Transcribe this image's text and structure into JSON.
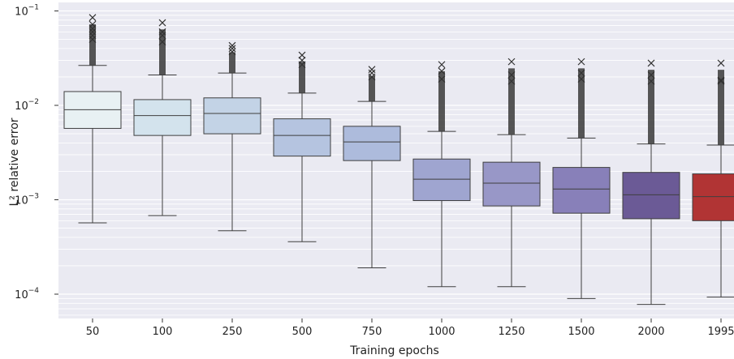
{
  "chart_data": {
    "type": "box",
    "xlabel": "Training epochs",
    "ylabel": "L² relative error",
    "yscale": "log",
    "ylim": [
      5e-05,
      0.1
    ],
    "y_ticks": [
      {
        "value": 0.1,
        "base": "10",
        "exp": "−1"
      },
      {
        "value": 0.01,
        "base": "10",
        "exp": "−2"
      },
      {
        "value": 0.001,
        "base": "10",
        "exp": "−3"
      },
      {
        "value": 0.0001,
        "base": "10",
        "exp": "−4"
      }
    ],
    "grid": true,
    "background_color": "#eaeaf2",
    "categories": [
      "50",
      "100",
      "250",
      "500",
      "750",
      "1000",
      "1250",
      "1500",
      "2000",
      "1995"
    ],
    "boxes": [
      {
        "label": "50",
        "color": "#e8f1f3",
        "whisker_low": 0.00057,
        "q1": 0.0057,
        "median": 0.009,
        "q3": 0.014,
        "whisker_high": 0.0265,
        "outlier_max": 0.085,
        "outliers": [
          0.085,
          0.072,
          0.065,
          0.06,
          0.055,
          0.05
        ]
      },
      {
        "label": "100",
        "color": "#d3e3ed",
        "whisker_low": 0.00068,
        "q1": 0.0048,
        "median": 0.0078,
        "q3": 0.0115,
        "whisker_high": 0.021,
        "outlier_max": 0.075,
        "outliers": [
          0.075,
          0.06,
          0.055,
          0.047
        ]
      },
      {
        "label": "250",
        "color": "#c3d3e6",
        "whisker_low": 0.00047,
        "q1": 0.005,
        "median": 0.0082,
        "q3": 0.012,
        "whisker_high": 0.022,
        "outlier_max": 0.043,
        "outliers": [
          0.043,
          0.04,
          0.037
        ]
      },
      {
        "label": "500",
        "color": "#b5c4e0",
        "whisker_low": 0.00036,
        "q1": 0.0029,
        "median": 0.0048,
        "q3": 0.0072,
        "whisker_high": 0.0135,
        "outlier_max": 0.034,
        "outliers": [
          0.034,
          0.03,
          0.027
        ]
      },
      {
        "label": "750",
        "color": "#adbbdc",
        "whisker_low": 0.00019,
        "q1": 0.0026,
        "median": 0.0041,
        "q3": 0.006,
        "whisker_high": 0.011,
        "outlier_max": 0.024,
        "outliers": [
          0.024,
          0.022,
          0.02
        ]
      },
      {
        "label": "1000",
        "color": "#9fa5d0",
        "whisker_low": 0.00012,
        "q1": 0.00098,
        "median": 0.00165,
        "q3": 0.0027,
        "whisker_high": 0.0053,
        "outlier_max": 0.027,
        "outliers": [
          0.027,
          0.023,
          0.019
        ]
      },
      {
        "label": "1250",
        "color": "#9897c7",
        "whisker_low": 0.00012,
        "q1": 0.00086,
        "median": 0.0015,
        "q3": 0.0025,
        "whisker_high": 0.0049,
        "outlier_max": 0.029,
        "outliers": [
          0.029,
          0.021,
          0.018
        ]
      },
      {
        "label": "1500",
        "color": "#8880b9",
        "whisker_low": 9e-05,
        "q1": 0.00072,
        "median": 0.0013,
        "q3": 0.0022,
        "whisker_high": 0.0045,
        "outlier_max": 0.029,
        "outliers": [
          0.029,
          0.022,
          0.019
        ]
      },
      {
        "label": "2000",
        "color": "#6b5a96",
        "whisker_low": 7.8e-05,
        "q1": 0.00063,
        "median": 0.00113,
        "q3": 0.00195,
        "whisker_high": 0.0039,
        "outlier_max": 0.028,
        "outliers": [
          0.028,
          0.021,
          0.018
        ]
      },
      {
        "label": "1995",
        "color": "#b13434",
        "whisker_low": 9.3e-05,
        "q1": 0.0006,
        "median": 0.00108,
        "q3": 0.00188,
        "whisker_high": 0.0038,
        "outlier_max": 0.028,
        "outliers": [
          0.028,
          0.0185,
          0.018
        ]
      }
    ]
  }
}
